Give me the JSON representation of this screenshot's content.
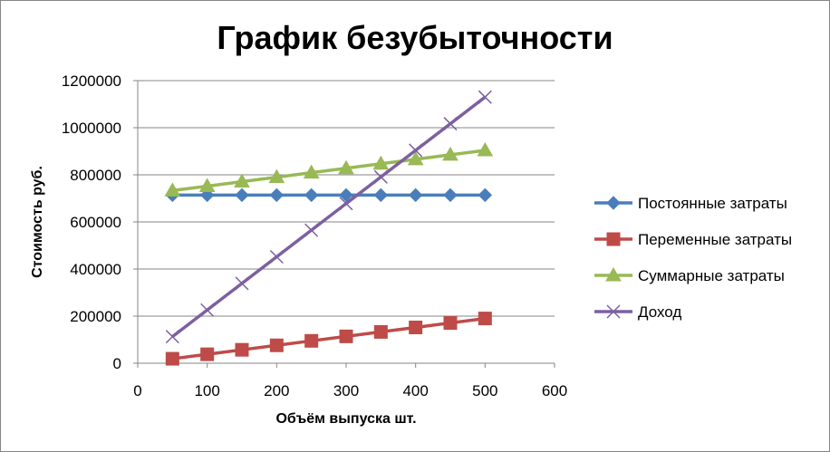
{
  "chart_data": {
    "type": "line",
    "title": "График безубыточности",
    "xlabel": "Объём выпуска шт.",
    "ylabel": "Стоимость руб.",
    "xlim": [
      0,
      600
    ],
    "ylim": [
      0,
      1200000
    ],
    "x_ticks": [
      0,
      100,
      200,
      300,
      400,
      500,
      600
    ],
    "y_ticks": [
      0,
      200000,
      400000,
      600000,
      800000,
      1000000,
      1200000
    ],
    "grid": "horizontal",
    "legend_position": "right",
    "x": [
      50,
      100,
      150,
      200,
      250,
      300,
      350,
      400,
      450,
      500
    ],
    "series": [
      {
        "name": "Постоянные затраты",
        "color": "#4a7ebb",
        "marker": "diamond",
        "values": [
          714000,
          714000,
          714000,
          714000,
          714000,
          714000,
          714000,
          714000,
          714000,
          714000
        ]
      },
      {
        "name": "Переменные затраты",
        "color": "#be4b48",
        "marker": "square",
        "values": [
          19000,
          38000,
          57000,
          76000,
          95000,
          114000,
          133000,
          152000,
          171000,
          190000
        ]
      },
      {
        "name": "Суммарные затраты",
        "color": "#98b954",
        "marker": "triangle",
        "values": [
          733000,
          752000,
          771000,
          790000,
          809000,
          828000,
          847000,
          866000,
          885000,
          904000
        ]
      },
      {
        "name": "Доход",
        "color": "#7d60a0",
        "marker": "x",
        "values": [
          113000,
          226000,
          339000,
          452000,
          565000,
          678000,
          791000,
          904000,
          1017000,
          1130000
        ]
      }
    ]
  }
}
